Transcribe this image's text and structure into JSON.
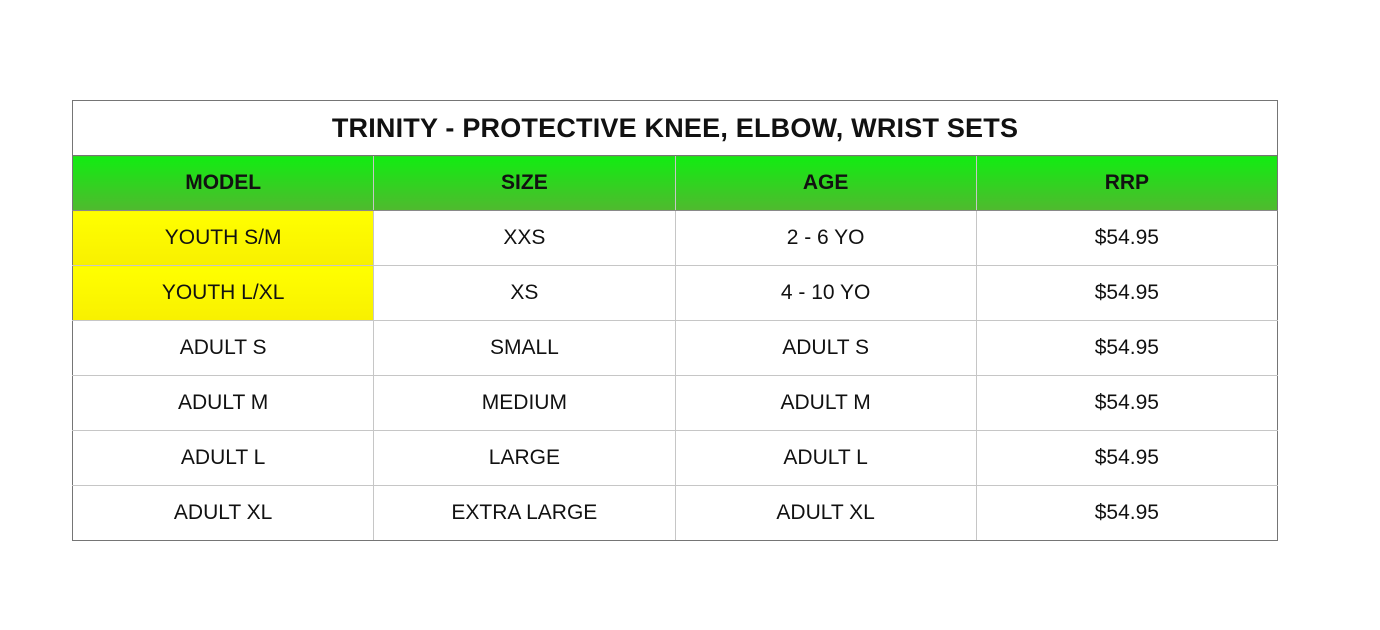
{
  "table": {
    "title": "TRINITY - PROTECTIVE KNEE, ELBOW, WRIST SETS",
    "columns": [
      "MODEL",
      "SIZE",
      "AGE",
      "RRP"
    ],
    "rows": [
      {
        "model": "YOUTH S/M",
        "size": "XXS",
        "age": "2 - 6 YO",
        "rrp": "$54.95",
        "model_highlighted": true
      },
      {
        "model": "YOUTH L/XL",
        "size": "XS",
        "age": "4 - 10 YO",
        "rrp": "$54.95",
        "model_highlighted": true
      },
      {
        "model": "ADULT S",
        "size": "SMALL",
        "age": "ADULT S",
        "rrp": "$54.95",
        "model_highlighted": false
      },
      {
        "model": "ADULT M",
        "size": "MEDIUM",
        "age": "ADULT M",
        "rrp": "$54.95",
        "model_highlighted": false
      },
      {
        "model": "ADULT L",
        "size": "LARGE",
        "age": "ADULT L",
        "rrp": "$54.95",
        "model_highlighted": false
      },
      {
        "model": "ADULT XL",
        "size": "EXTRA LARGE",
        "age": "ADULT XL",
        "rrp": "$54.95",
        "model_highlighted": false
      }
    ],
    "colors": {
      "header_gradient_top": "#12EC12",
      "header_gradient_bottom": "#50B92F",
      "model_highlight_top": "#FFFF00",
      "model_highlight_bottom": "#F8F000",
      "outer_border": "#757575",
      "inner_border": "#C6C6C6",
      "text": "#111111"
    }
  }
}
